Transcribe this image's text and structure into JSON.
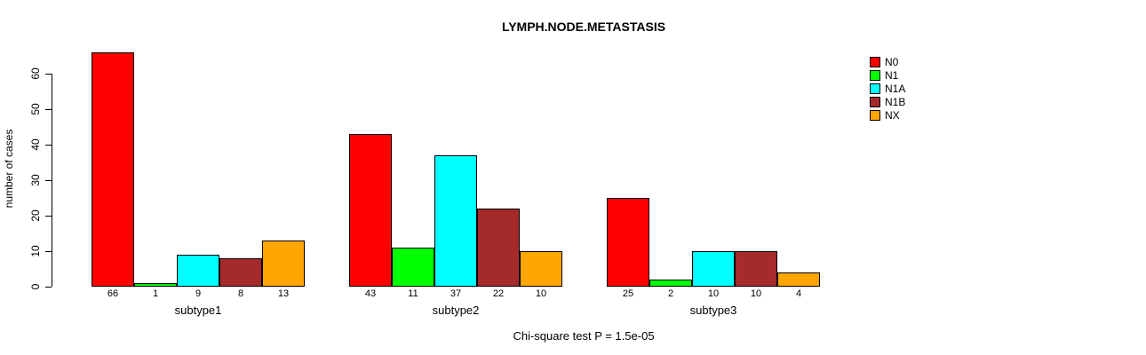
{
  "chart_data": {
    "type": "bar",
    "grouped": true,
    "title": "LYMPH.NODE.METASTASIS",
    "xlabel": "",
    "ylabel": "number of cases",
    "ylim": [
      0,
      66
    ],
    "yticks": [
      0,
      10,
      20,
      30,
      40,
      50,
      60
    ],
    "categories": [
      "subtype1",
      "subtype2",
      "subtype3"
    ],
    "series": [
      {
        "name": "N0",
        "color": "#FF0000",
        "values": [
          66,
          43,
          25
        ]
      },
      {
        "name": "N1",
        "color": "#00FF00",
        "values": [
          1,
          11,
          2
        ]
      },
      {
        "name": "N1A",
        "color": "#00FFFF",
        "values": [
          9,
          37,
          10
        ]
      },
      {
        "name": "N1B",
        "color": "#A52A2A",
        "values": [
          8,
          22,
          10
        ]
      },
      {
        "name": "NX",
        "color": "#FFA500",
        "values": [
          13,
          10,
          4
        ]
      }
    ],
    "bar_value_labels": true,
    "legend_position": "top-right",
    "grid": false,
    "annotation": "Chi-square test P = 1.5e-05"
  },
  "colors": {
    "bar_border": "#000000",
    "axis": "#000000",
    "text": "#000000",
    "background": "#FFFFFF"
  }
}
